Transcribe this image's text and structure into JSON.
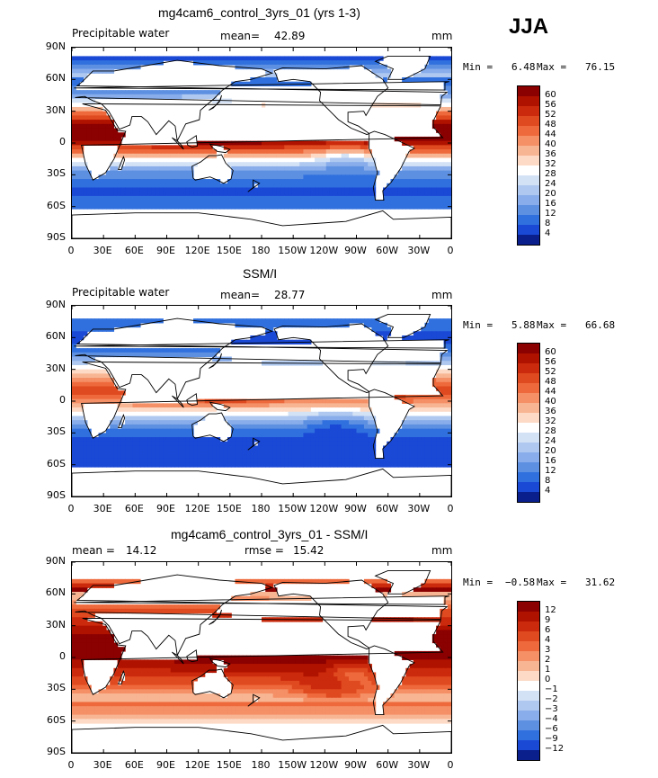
{
  "season": "JJA",
  "units": "mm",
  "lat_ticks": [
    "90N",
    "60N",
    "30N",
    "0",
    "30S",
    "60S",
    "90S"
  ],
  "lon_ticks": [
    "0",
    "30E",
    "60E",
    "90E",
    "120E",
    "150E",
    "180",
    "150W",
    "120W",
    "90W",
    "60W",
    "30W",
    "0"
  ],
  "panels": [
    {
      "title": "mg4cam6_control_3yrs_01 (yrs 1-3)",
      "left_label": "Precipitable water",
      "stat_label": "mean=",
      "stat_value": "42.89",
      "extra_label": "",
      "extra_value": "",
      "units": "mm",
      "min_text": "Min =",
      "min_value": "6.48",
      "max_text": "Max =",
      "max_value": "76.15",
      "colorbar": {
        "levels": [
          "60",
          "56",
          "52",
          "48",
          "44",
          "40",
          "36",
          "32",
          "28",
          "24",
          "20",
          "16",
          "12",
          "8",
          "4"
        ],
        "colors": [
          "#8b0000",
          "#b01200",
          "#cc2a0c",
          "#e04a20",
          "#ee6a3c",
          "#f48f66",
          "#f8b593",
          "#fcdac6",
          "#ffffff",
          "#d4e2f6",
          "#aec8f0",
          "#88adea",
          "#5e90e2",
          "#3070de",
          "#1a49d6",
          "#0a1f8c"
        ]
      },
      "field": "model"
    },
    {
      "title": "SSM/I",
      "left_label": "Precipitable water",
      "stat_label": "mean=",
      "stat_value": "28.77",
      "extra_label": "",
      "extra_value": "",
      "units": "mm",
      "min_text": "Min =",
      "min_value": "5.88",
      "max_text": "Max =",
      "max_value": "66.68",
      "colorbar": {
        "levels": [
          "60",
          "56",
          "52",
          "48",
          "44",
          "40",
          "36",
          "32",
          "28",
          "24",
          "20",
          "16",
          "12",
          "8",
          "4"
        ],
        "colors": [
          "#8b0000",
          "#b01200",
          "#cc2a0c",
          "#e04a20",
          "#ee6a3c",
          "#f48f66",
          "#f8b593",
          "#fcdac6",
          "#ffffff",
          "#d4e2f6",
          "#aec8f0",
          "#88adea",
          "#5e90e2",
          "#3070de",
          "#1a49d6",
          "#0a1f8c"
        ]
      },
      "field": "obs"
    },
    {
      "title": "mg4cam6_control_3yrs_01 - SSM/I",
      "left_label": "",
      "stat_label": "mean =",
      "stat_value": "14.12",
      "extra_label": "rmse =",
      "extra_value": "15.42",
      "units": "mm",
      "min_text": "Min =",
      "min_value": "−0.58",
      "max_text": "Max =",
      "max_value": "31.62",
      "colorbar": {
        "levels": [
          "12",
          "9",
          "6",
          "4",
          "3",
          "2",
          "1",
          "0",
          "−1",
          "−2",
          "−3",
          "−4",
          "−6",
          "−9",
          "−12"
        ],
        "colors": [
          "#8b0000",
          "#b01200",
          "#cc2a0c",
          "#e04a20",
          "#ee6a3c",
          "#f48f66",
          "#f8b593",
          "#fcdac6",
          "#ffffff",
          "#d4e2f6",
          "#aec8f0",
          "#88adea",
          "#5e90e2",
          "#3070de",
          "#1a49d6",
          "#0a1f8c"
        ]
      },
      "field": "diff"
    }
  ]
}
